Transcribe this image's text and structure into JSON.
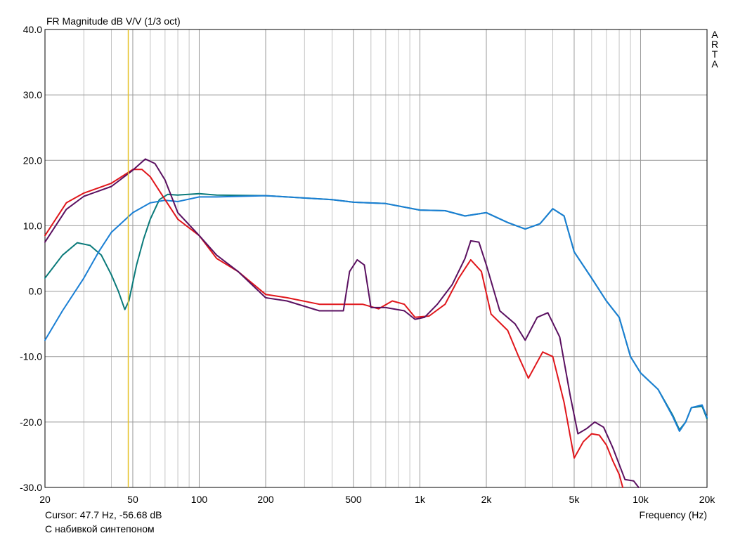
{
  "chart_data": {
    "type": "line",
    "title": "FR Magnitude dB V/V (1/3 oct)",
    "xlabel": "Frequency (Hz)",
    "ylabel": "",
    "xscale": "log",
    "xlim": [
      20,
      20000
    ],
    "ylim": [
      -30,
      40
    ],
    "grid": true,
    "xticks": [
      20,
      50,
      100,
      200,
      500,
      1000,
      2000,
      5000,
      10000,
      20000
    ],
    "xtick_labels": [
      "20",
      "50",
      "100",
      "200",
      "500",
      "1k",
      "2k",
      "5k",
      "10k",
      "20k"
    ],
    "yticks": [
      40,
      30,
      20,
      10,
      0,
      -10,
      -20,
      -30
    ],
    "ytick_labels": [
      "40.0",
      "30.0",
      "20.0",
      "10.0",
      "0.0",
      "-10.0",
      "-20.0",
      "-30.0"
    ],
    "cursor_x": 47.7,
    "cursor_color": "#e6c229",
    "series": [
      {
        "color": "#0a7a7a",
        "points": [
          [
            20,
            2
          ],
          [
            24,
            5.5
          ],
          [
            28,
            7.4
          ],
          [
            32,
            7
          ],
          [
            36,
            5.5
          ],
          [
            40,
            2.5
          ],
          [
            43,
            0
          ],
          [
            46,
            -2.8
          ],
          [
            48,
            -1.5
          ],
          [
            52,
            4
          ],
          [
            56,
            8
          ],
          [
            60,
            11
          ],
          [
            66,
            14
          ],
          [
            72,
            14.8
          ],
          [
            80,
            14.7
          ],
          [
            100,
            14.9
          ],
          [
            120,
            14.7
          ],
          [
            200,
            14.6
          ],
          [
            400,
            14
          ],
          [
            500,
            13.6
          ],
          [
            700,
            13.4
          ],
          [
            1000,
            12.4
          ],
          [
            1300,
            12.3
          ],
          [
            1600,
            11.5
          ],
          [
            2000,
            12
          ],
          [
            2500,
            10.5
          ],
          [
            3000,
            9.5
          ],
          [
            3500,
            10.3
          ],
          [
            4000,
            12.6
          ],
          [
            4500,
            11.5
          ],
          [
            5000,
            6
          ],
          [
            6000,
            2
          ],
          [
            7000,
            -1.5
          ],
          [
            8000,
            -4
          ],
          [
            9000,
            -10
          ],
          [
            10000,
            -12.5
          ],
          [
            12000,
            -15
          ],
          [
            14000,
            -19
          ],
          [
            15000,
            -21.2
          ],
          [
            16000,
            -20
          ],
          [
            17000,
            -17.8
          ],
          [
            19000,
            -17.6
          ],
          [
            20000,
            -19.5
          ]
        ]
      },
      {
        "color": "#1a7fd4",
        "points": [
          [
            20,
            -7.5
          ],
          [
            24,
            -3
          ],
          [
            30,
            2
          ],
          [
            35,
            6
          ],
          [
            40,
            9
          ],
          [
            50,
            12
          ],
          [
            60,
            13.5
          ],
          [
            70,
            13.9
          ],
          [
            80,
            13.7
          ],
          [
            100,
            14.4
          ],
          [
            120,
            14.4
          ],
          [
            200,
            14.6
          ],
          [
            400,
            14
          ],
          [
            500,
            13.6
          ],
          [
            700,
            13.4
          ],
          [
            1000,
            12.4
          ],
          [
            1300,
            12.3
          ],
          [
            1600,
            11.5
          ],
          [
            2000,
            12
          ],
          [
            2500,
            10.5
          ],
          [
            3000,
            9.5
          ],
          [
            3500,
            10.3
          ],
          [
            4000,
            12.6
          ],
          [
            4500,
            11.5
          ],
          [
            5000,
            6
          ],
          [
            6000,
            2
          ],
          [
            7000,
            -1.5
          ],
          [
            8000,
            -4
          ],
          [
            9000,
            -10
          ],
          [
            10000,
            -12.5
          ],
          [
            12000,
            -15
          ],
          [
            14000,
            -19.2
          ],
          [
            15000,
            -21.4
          ],
          [
            16000,
            -20
          ],
          [
            17000,
            -17.8
          ],
          [
            19000,
            -17.4
          ],
          [
            20000,
            -19.3
          ]
        ]
      },
      {
        "color": "#e0161b",
        "points": [
          [
            20,
            8.5
          ],
          [
            25,
            13.5
          ],
          [
            30,
            15
          ],
          [
            40,
            16.5
          ],
          [
            50,
            18.6
          ],
          [
            55,
            18.6
          ],
          [
            60,
            17.5
          ],
          [
            70,
            14
          ],
          [
            80,
            11
          ],
          [
            100,
            8.5
          ],
          [
            120,
            5
          ],
          [
            150,
            3
          ],
          [
            200,
            -0.5
          ],
          [
            250,
            -1
          ],
          [
            350,
            -2
          ],
          [
            450,
            -2
          ],
          [
            550,
            -2
          ],
          [
            650,
            -2.7
          ],
          [
            750,
            -1.5
          ],
          [
            850,
            -2
          ],
          [
            950,
            -4
          ],
          [
            1100,
            -3.8
          ],
          [
            1300,
            -2
          ],
          [
            1500,
            2
          ],
          [
            1700,
            4.8
          ],
          [
            1900,
            3
          ],
          [
            2100,
            -3.5
          ],
          [
            2500,
            -6
          ],
          [
            2800,
            -10
          ],
          [
            3100,
            -13.3
          ],
          [
            3600,
            -9.3
          ],
          [
            4000,
            -10
          ],
          [
            4500,
            -17
          ],
          [
            5000,
            -25.5
          ],
          [
            5500,
            -23
          ],
          [
            6000,
            -21.8
          ],
          [
            6500,
            -22
          ],
          [
            7000,
            -23.5
          ],
          [
            7500,
            -26
          ],
          [
            8000,
            -28
          ],
          [
            8300,
            -30
          ]
        ]
      },
      {
        "color": "#5a1060",
        "points": [
          [
            20,
            7.5
          ],
          [
            25,
            12.5
          ],
          [
            30,
            14.5
          ],
          [
            40,
            16
          ],
          [
            50,
            18.5
          ],
          [
            57,
            20.2
          ],
          [
            63,
            19.5
          ],
          [
            70,
            17
          ],
          [
            80,
            12
          ],
          [
            100,
            8.5
          ],
          [
            120,
            5.5
          ],
          [
            150,
            3
          ],
          [
            200,
            -1
          ],
          [
            250,
            -1.5
          ],
          [
            350,
            -3
          ],
          [
            450,
            -3
          ],
          [
            480,
            3
          ],
          [
            520,
            4.8
          ],
          [
            560,
            4
          ],
          [
            600,
            -2.5
          ],
          [
            700,
            -2.5
          ],
          [
            850,
            -3
          ],
          [
            950,
            -4.3
          ],
          [
            1050,
            -4
          ],
          [
            1200,
            -2
          ],
          [
            1400,
            1
          ],
          [
            1600,
            5
          ],
          [
            1700,
            7.7
          ],
          [
            1850,
            7.5
          ],
          [
            2000,
            4
          ],
          [
            2300,
            -3
          ],
          [
            2700,
            -5
          ],
          [
            3000,
            -7.5
          ],
          [
            3400,
            -4
          ],
          [
            3800,
            -3.3
          ],
          [
            4300,
            -7
          ],
          [
            4800,
            -16
          ],
          [
            5200,
            -21.8
          ],
          [
            5700,
            -21
          ],
          [
            6200,
            -20
          ],
          [
            6800,
            -20.8
          ],
          [
            7500,
            -24
          ],
          [
            8500,
            -28.8
          ],
          [
            9300,
            -29
          ],
          [
            9800,
            -30
          ]
        ]
      }
    ]
  },
  "ui": {
    "brand_letters": [
      "A",
      "R",
      "T",
      "A"
    ],
    "cursor_readout": "Cursor: 47.7 Hz, -56.68 dB",
    "caption": "С набивкой синтепоном"
  }
}
